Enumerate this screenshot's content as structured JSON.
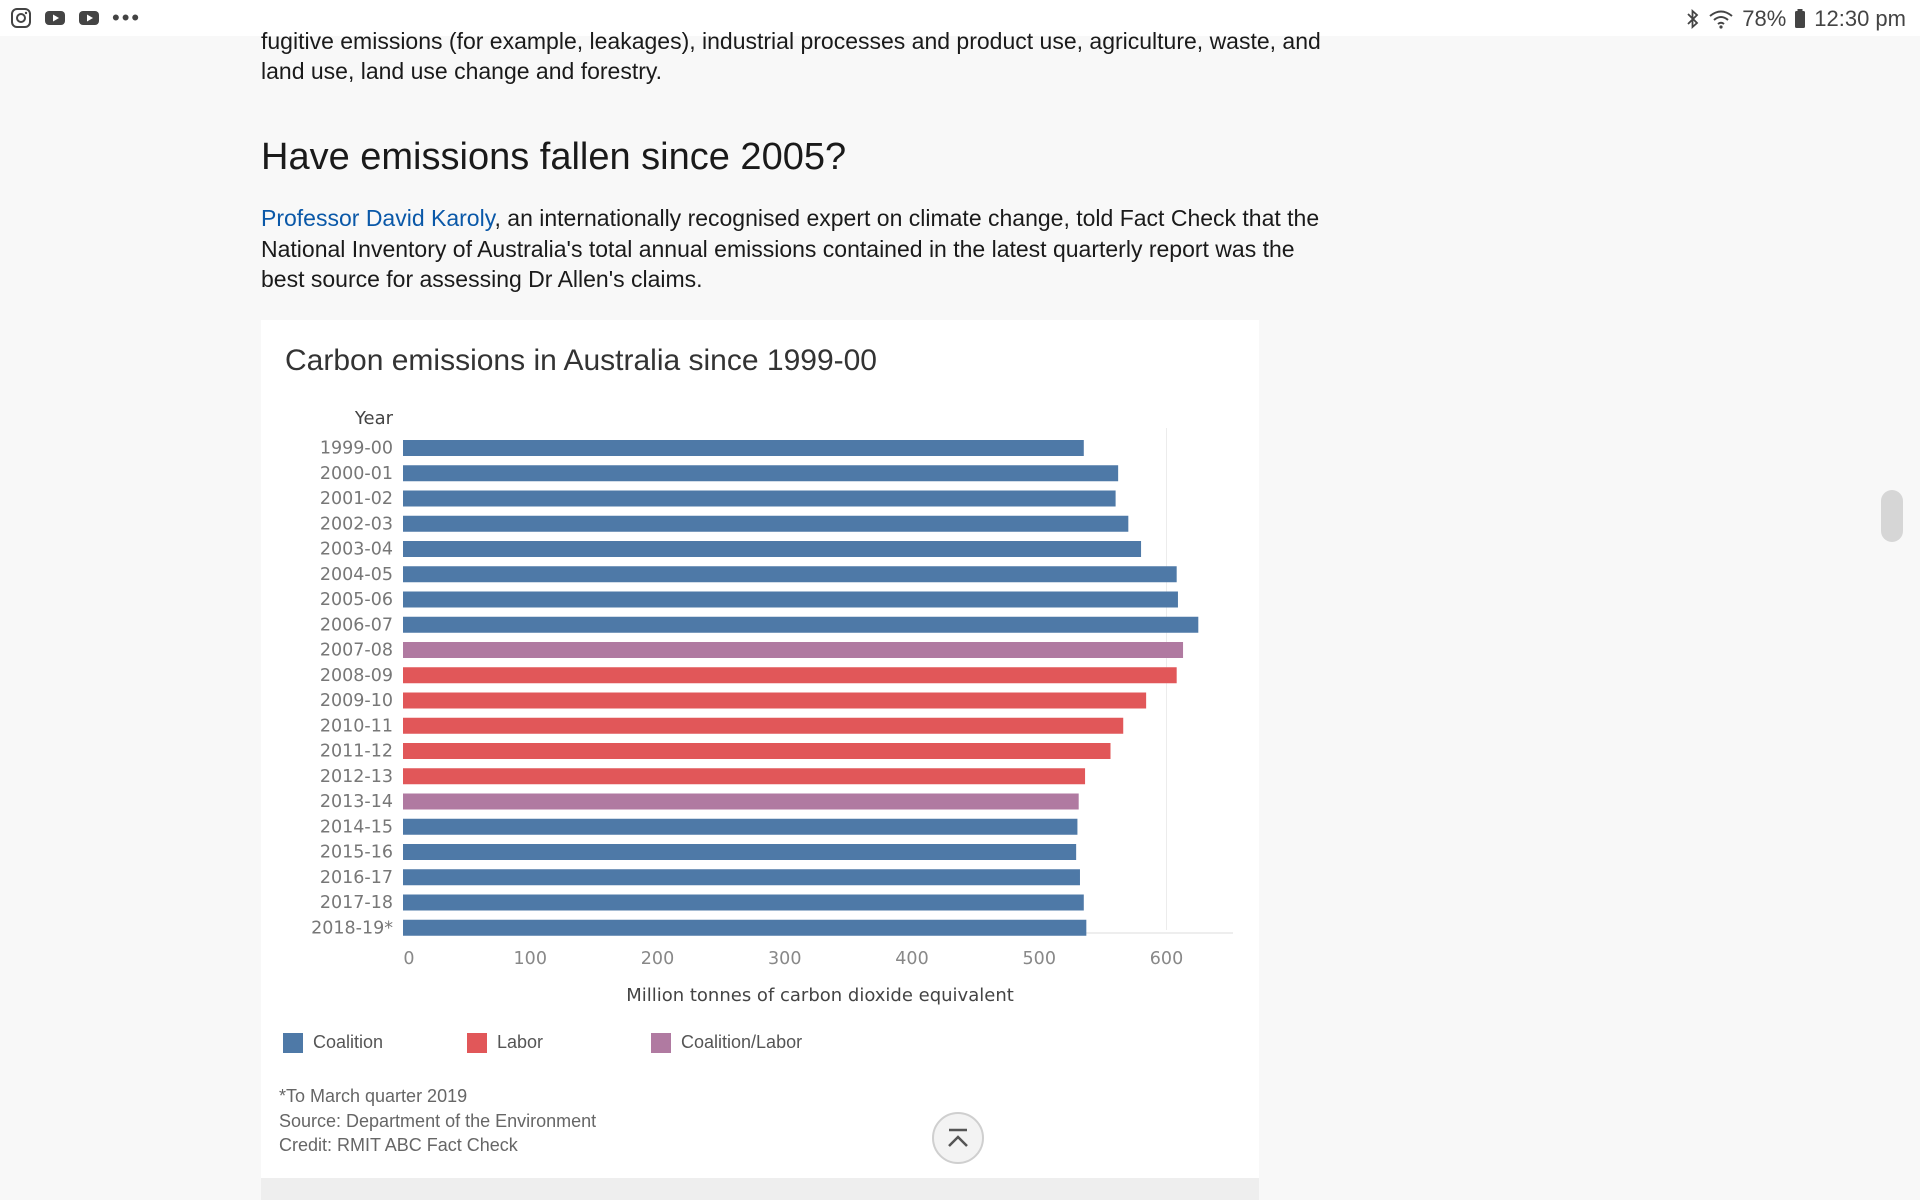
{
  "status_bar": {
    "icons_left": [
      "instagram-icon",
      "youtube-icon",
      "youtube-icon",
      "more-icon"
    ],
    "more_label": "•••",
    "battery": "78%",
    "time": "12:30 pm"
  },
  "article": {
    "intro_text": "fugitive emissions (for example, leakages), industrial processes and product use, agriculture, waste, and land use, land use change and forestry.",
    "heading": "Have emissions fallen since 2005?",
    "para_link": "Professor David Karoly",
    "para_text": ", an internationally recognised expert on climate change, told Fact Check that the National Inventory of Australia's total annual emissions contained in the latest quarterly report was the best source for assessing Dr Allen's claims."
  },
  "chart_data": {
    "type": "bar",
    "orientation": "horizontal",
    "title": "Carbon emissions in Australia since 1999-00",
    "ylabel": "Year",
    "xlabel": "Million tonnes of carbon dioxide equivalent",
    "xlim": [
      0,
      650
    ],
    "xticks": [
      0,
      100,
      200,
      300,
      400,
      500,
      600
    ],
    "categories": [
      "1999-00",
      "2000-01",
      "2001-02",
      "2002-03",
      "2003-04",
      "2004-05",
      "2005-06",
      "2006-07",
      "2007-08",
      "2008-09",
      "2009-10",
      "2010-11",
      "2011-12",
      "2012-13",
      "2013-14",
      "2014-15",
      "2015-16",
      "2016-17",
      "2017-18",
      "2018-19*"
    ],
    "values": [
      535,
      562,
      560,
      570,
      580,
      608,
      609,
      625,
      613,
      608,
      584,
      566,
      556,
      536,
      531,
      530,
      529,
      532,
      535,
      537
    ],
    "government": [
      "Coalition",
      "Coalition",
      "Coalition",
      "Coalition",
      "Coalition",
      "Coalition",
      "Coalition",
      "Coalition",
      "Coalition/Labor",
      "Labor",
      "Labor",
      "Labor",
      "Labor",
      "Labor",
      "Coalition/Labor",
      "Coalition",
      "Coalition",
      "Coalition",
      "Coalition",
      "Coalition"
    ],
    "legend": [
      {
        "name": "Coalition",
        "color": "#4e79a7"
      },
      {
        "name": "Labor",
        "color": "#e15759"
      },
      {
        "name": "Coalition/Labor",
        "color": "#b07aa1"
      }
    ],
    "legend_position": "bottom-left",
    "notes": [
      "*To March quarter 2019",
      "Source: Department of the Environment",
      "Credit: RMIT ABC Fact Check"
    ]
  }
}
